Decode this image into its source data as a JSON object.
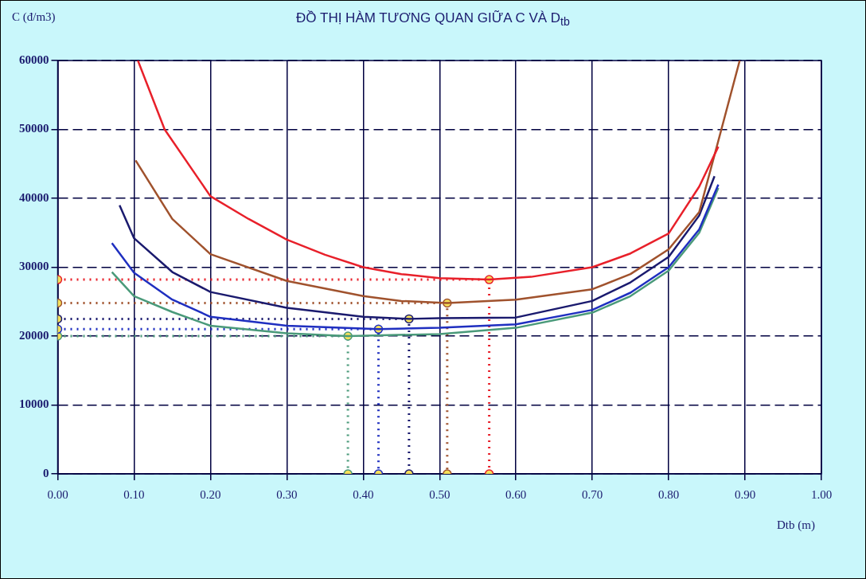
{
  "chart_data": {
    "type": "line",
    "title": "ĐỒ THỊ HÀM TƯƠNG QUAN GIỮA C VÀ D$_{tb}$",
    "xlabel": "Dtb (m)",
    "ylabel": "C (đ/m3)",
    "xlim": [
      0,
      1
    ],
    "xticks": [
      {
        "value": 0,
        "label": "0.00"
      },
      {
        "value": 0.1,
        "label": "0.10"
      },
      {
        "value": 0.2,
        "label": "0.20"
      },
      {
        "value": 0.3,
        "label": "0.30"
      },
      {
        "value": 0.4,
        "label": "0.40"
      },
      {
        "value": 0.5,
        "label": "0.50"
      },
      {
        "value": 0.6,
        "label": "0.60"
      },
      {
        "value": 0.7,
        "label": "0.70"
      },
      {
        "value": 0.8,
        "label": "0.80"
      },
      {
        "value": 0.9,
        "label": "0.90"
      },
      {
        "value": 1,
        "label": "1.00"
      }
    ],
    "ylim": [
      0,
      60000
    ],
    "yticks": [
      0,
      10000,
      20000,
      30000,
      40000,
      50000,
      60000
    ],
    "grid": true,
    "legend": false,
    "marker": "none",
    "line_style": "solid",
    "series": [
      {
        "color": "#e8202a",
        "x": [
          0.105,
          0.14,
          0.2,
          0.25,
          0.3,
          0.35,
          0.4,
          0.45,
          0.5,
          0.565,
          0.62,
          0.7,
          0.75,
          0.8,
          0.84,
          0.865
        ],
        "values": [
          60000,
          50000,
          40300,
          37000,
          34000,
          31800,
          30000,
          29000,
          28400,
          28200,
          28600,
          30000,
          32000,
          34900,
          41700,
          47500
        ]
      },
      {
        "color": "#a0522d",
        "x": [
          0.102,
          0.15,
          0.2,
          0.3,
          0.4,
          0.45,
          0.51,
          0.6,
          0.7,
          0.75,
          0.8,
          0.84,
          0.869,
          0.893
        ],
        "values": [
          45500,
          37000,
          31900,
          28000,
          25800,
          25100,
          24800,
          25300,
          26800,
          29000,
          32600,
          38000,
          50000,
          60000
        ]
      },
      {
        "color": "#1a1a6e",
        "x": [
          0.081,
          0.1,
          0.15,
          0.2,
          0.3,
          0.4,
          0.46,
          0.5,
          0.6,
          0.7,
          0.75,
          0.8,
          0.84,
          0.86
        ],
        "values": [
          39000,
          34200,
          29300,
          26400,
          24100,
          22800,
          22500,
          22600,
          22700,
          25100,
          27800,
          31500,
          37500,
          43200
        ]
      },
      {
        "color": "#1f2fc0",
        "x": [
          0.071,
          0.1,
          0.15,
          0.2,
          0.3,
          0.42,
          0.5,
          0.6,
          0.7,
          0.75,
          0.8,
          0.84,
          0.865
        ],
        "values": [
          33500,
          29200,
          25300,
          22800,
          21500,
          21000,
          21200,
          21700,
          23800,
          26300,
          30000,
          35500,
          42000
        ]
      },
      {
        "color": "#4a9a7a",
        "x": [
          0.071,
          0.1,
          0.15,
          0.2,
          0.3,
          0.38,
          0.5,
          0.6,
          0.7,
          0.75,
          0.8,
          0.84,
          0.865
        ],
        "values": [
          29300,
          25800,
          23500,
          21500,
          20400,
          20000,
          20300,
          21200,
          23400,
          25800,
          29500,
          35000,
          41500
        ]
      },
      {
        "color": "#e8202a",
        "marker": "circle",
        "line_style": "dotted",
        "x": [
          0,
          0.565,
          0.565
        ],
        "values": [
          28200,
          28200,
          0
        ]
      },
      {
        "color": "#a0522d",
        "marker": "circle",
        "line_style": "dotted",
        "x": [
          0,
          0.51,
          0.51
        ],
        "values": [
          24800,
          24800,
          0
        ]
      },
      {
        "color": "#1a1a6e",
        "marker": "circle",
        "line_style": "dotted",
        "x": [
          0,
          0.46,
          0.46
        ],
        "values": [
          22500,
          22500,
          0
        ]
      },
      {
        "color": "#1f2fc0",
        "marker": "circle",
        "line_style": "dotted",
        "x": [
          0,
          0.42,
          0.42
        ],
        "values": [
          21000,
          21000,
          0
        ]
      },
      {
        "color": "#4a9a7a",
        "marker": "circle",
        "line_style": "dotted",
        "x": [
          0,
          0.38,
          0.38
        ],
        "values": [
          20000,
          20000,
          0
        ]
      }
    ]
  }
}
